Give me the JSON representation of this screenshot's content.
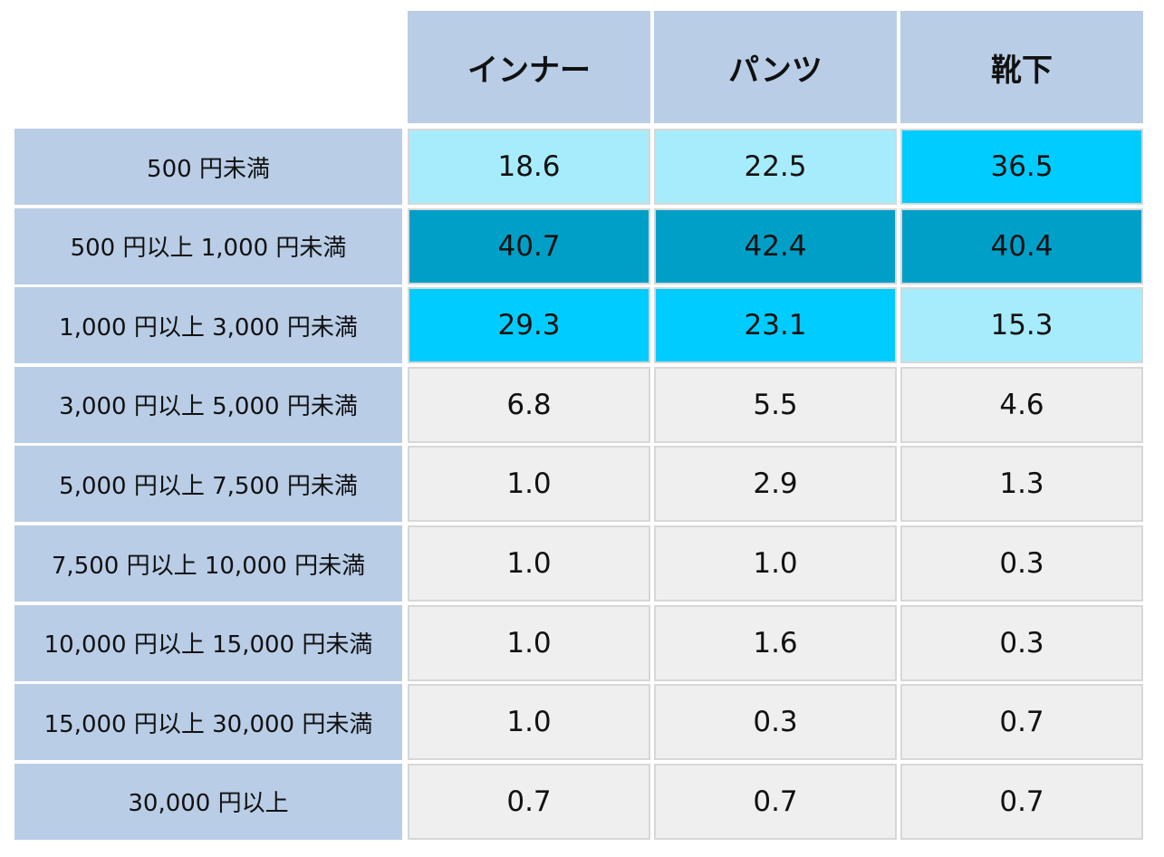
{
  "chart_data": {
    "type": "heatmap",
    "columns": [
      "インナー",
      "パンツ",
      "靴下"
    ],
    "rows": [
      "500 円未満",
      "500 円以上 1,000 円未満",
      "1,000 円以上 3,000 円未満",
      "3,000 円以上 5,000 円未満",
      "5,000 円以上 7,500 円未満",
      "7,500 円以上 10,000 円未満",
      "10,000 円以上 15,000 円未満",
      "15,000 円以上 30,000 円未満",
      "30,000 円以上"
    ],
    "values": [
      [
        "18.6",
        "22.5",
        "36.5"
      ],
      [
        "40.7",
        "42.4",
        "40.4"
      ],
      [
        "29.3",
        "23.1",
        "15.3"
      ],
      [
        "6.8",
        "5.5",
        "4.6"
      ],
      [
        "1.0",
        "2.9",
        "1.3"
      ],
      [
        "1.0",
        "1.0",
        "0.3"
      ],
      [
        "1.0",
        "1.6",
        "0.3"
      ],
      [
        "1.0",
        "0.3",
        "0.7"
      ],
      [
        "0.7",
        "0.7",
        "0.7"
      ]
    ],
    "colors": {
      "header_bg": "#b9cde6",
      "default_cell": "#efefef",
      "rank1": "#009fc8",
      "rank2": "#00ccff",
      "rank3": "#a6ecfc"
    }
  }
}
